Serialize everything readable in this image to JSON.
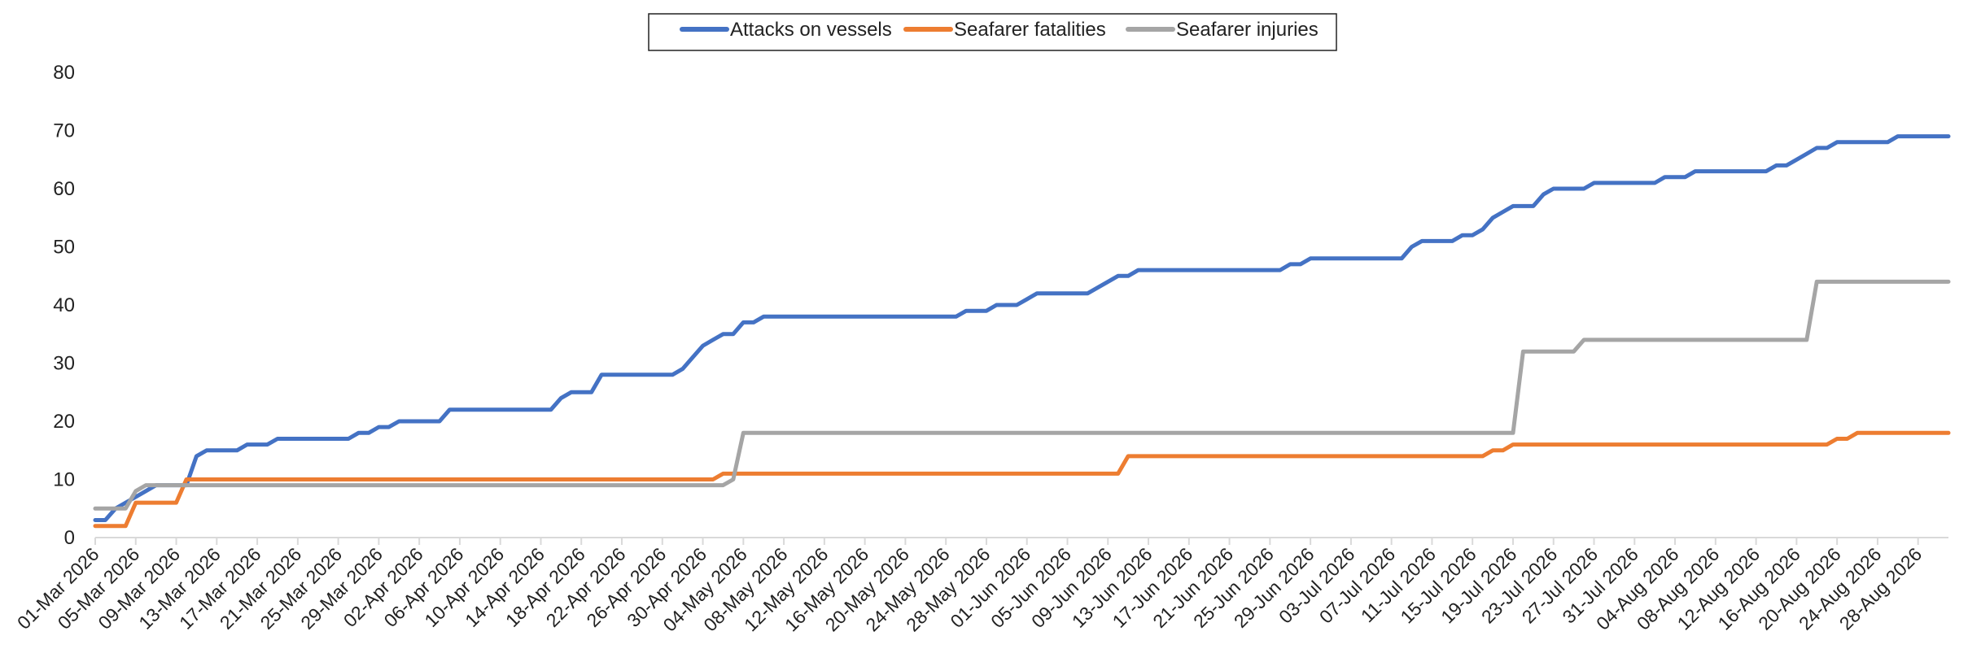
{
  "chart_data": {
    "type": "line",
    "title": "",
    "xlabel": "",
    "ylabel": "",
    "x_start": "2026-03-01",
    "x_end": "2026-08-31",
    "ylim": [
      0,
      80
    ],
    "y_ticks": [
      0,
      10,
      20,
      30,
      40,
      50,
      60,
      70,
      80
    ],
    "x_tick_labels": [
      "01-Mar 2026",
      "05-Mar 2026",
      "09-Mar 2026",
      "13-Mar 2026",
      "17-Mar 2026",
      "21-Mar 2026",
      "25-Mar 2026",
      "29-Mar 2026",
      "02-Apr 2026",
      "06-Apr 2026",
      "10-Apr 2026",
      "14-Apr 2026",
      "18-Apr 2026",
      "22-Apr 2026",
      "26-Apr 2026",
      "30-Apr 2026",
      "04-May 2026",
      "08-May 2026",
      "12-May 2026",
      "16-May 2026",
      "20-May 2026",
      "24-May 2026",
      "28-May 2026",
      "01-Jun 2026",
      "05-Jun 2026",
      "09-Jun 2026",
      "13-Jun 2026",
      "17-Jun 2026",
      "21-Jun 2026",
      "25-Jun 2026",
      "29-Jun 2026",
      "03-Jul 2026",
      "07-Jul 2026",
      "11-Jul 2026",
      "15-Jul 2026",
      "19-Jul 2026",
      "23-Jul 2026",
      "27-Jul 2026",
      "31-Jul 2026",
      "04-Aug 2026",
      "08-Aug 2026",
      "12-Aug 2026",
      "16-Aug 2026",
      "20-Aug 2026",
      "24-Aug 2026",
      "28-Aug 2026"
    ],
    "grid": false,
    "legend_position": "top-center",
    "series": [
      {
        "name": "Attacks on vessels",
        "color": "#4472C4",
        "points": [
          [
            "2026-03-01",
            3
          ],
          [
            "2026-03-02",
            3
          ],
          [
            "2026-03-03",
            5
          ],
          [
            "2026-03-04",
            6
          ],
          [
            "2026-03-05",
            7
          ],
          [
            "2026-03-06",
            8
          ],
          [
            "2026-03-07",
            9
          ],
          [
            "2026-03-08",
            9
          ],
          [
            "2026-03-09",
            9
          ],
          [
            "2026-03-10",
            9
          ],
          [
            "2026-03-11",
            14
          ],
          [
            "2026-03-12",
            15
          ],
          [
            "2026-03-15",
            15
          ],
          [
            "2026-03-16",
            16
          ],
          [
            "2026-03-18",
            16
          ],
          [
            "2026-03-19",
            17
          ],
          [
            "2026-03-26",
            17
          ],
          [
            "2026-03-27",
            18
          ],
          [
            "2026-03-28",
            18
          ],
          [
            "2026-03-29",
            19
          ],
          [
            "2026-03-30",
            19
          ],
          [
            "2026-03-31",
            20
          ],
          [
            "2026-04-04",
            20
          ],
          [
            "2026-04-05",
            22
          ],
          [
            "2026-04-15",
            22
          ],
          [
            "2026-04-16",
            24
          ],
          [
            "2026-04-17",
            25
          ],
          [
            "2026-04-19",
            25
          ],
          [
            "2026-04-20",
            28
          ],
          [
            "2026-04-27",
            28
          ],
          [
            "2026-04-28",
            29
          ],
          [
            "2026-04-29",
            31
          ],
          [
            "2026-04-30",
            33
          ],
          [
            "2026-05-01",
            34
          ],
          [
            "2026-05-02",
            35
          ],
          [
            "2026-05-03",
            35
          ],
          [
            "2026-05-04",
            37
          ],
          [
            "2026-05-05",
            37
          ],
          [
            "2026-05-06",
            38
          ],
          [
            "2026-05-25",
            38
          ],
          [
            "2026-05-26",
            39
          ],
          [
            "2026-05-28",
            39
          ],
          [
            "2026-05-29",
            40
          ],
          [
            "2026-05-31",
            40
          ],
          [
            "2026-06-01",
            41
          ],
          [
            "2026-06-02",
            42
          ],
          [
            "2026-06-07",
            42
          ],
          [
            "2026-06-08",
            43
          ],
          [
            "2026-06-09",
            44
          ],
          [
            "2026-06-10",
            45
          ],
          [
            "2026-06-11",
            45
          ],
          [
            "2026-06-12",
            46
          ],
          [
            "2026-06-26",
            46
          ],
          [
            "2026-06-27",
            47
          ],
          [
            "2026-06-28",
            47
          ],
          [
            "2026-06-29",
            48
          ],
          [
            "2026-07-08",
            48
          ],
          [
            "2026-07-09",
            50
          ],
          [
            "2026-07-10",
            51
          ],
          [
            "2026-07-13",
            51
          ],
          [
            "2026-07-14",
            52
          ],
          [
            "2026-07-15",
            52
          ],
          [
            "2026-07-16",
            53
          ],
          [
            "2026-07-17",
            55
          ],
          [
            "2026-07-18",
            56
          ],
          [
            "2026-07-19",
            57
          ],
          [
            "2026-07-21",
            57
          ],
          [
            "2026-07-22",
            59
          ],
          [
            "2026-07-23",
            60
          ],
          [
            "2026-07-26",
            60
          ],
          [
            "2026-07-27",
            61
          ],
          [
            "2026-08-02",
            61
          ],
          [
            "2026-08-03",
            62
          ],
          [
            "2026-08-05",
            62
          ],
          [
            "2026-08-06",
            63
          ],
          [
            "2026-08-13",
            63
          ],
          [
            "2026-08-14",
            64
          ],
          [
            "2026-08-15",
            64
          ],
          [
            "2026-08-16",
            65
          ],
          [
            "2026-08-17",
            66
          ],
          [
            "2026-08-18",
            67
          ],
          [
            "2026-08-19",
            67
          ],
          [
            "2026-08-20",
            68
          ],
          [
            "2026-08-25",
            68
          ],
          [
            "2026-08-26",
            69
          ],
          [
            "2026-08-31",
            69
          ]
        ]
      },
      {
        "name": "Seafarer fatalities",
        "color": "#ED7D31",
        "points": [
          [
            "2026-03-01",
            2
          ],
          [
            "2026-03-04",
            2
          ],
          [
            "2026-03-05",
            6
          ],
          [
            "2026-03-09",
            6
          ],
          [
            "2026-03-10",
            10
          ],
          [
            "2026-05-01",
            10
          ],
          [
            "2026-05-02",
            11
          ],
          [
            "2026-06-10",
            11
          ],
          [
            "2026-06-11",
            14
          ],
          [
            "2026-07-16",
            14
          ],
          [
            "2026-07-17",
            15
          ],
          [
            "2026-07-18",
            15
          ],
          [
            "2026-07-19",
            16
          ],
          [
            "2026-08-19",
            16
          ],
          [
            "2026-08-20",
            17
          ],
          [
            "2026-08-21",
            17
          ],
          [
            "2026-08-22",
            18
          ],
          [
            "2026-08-31",
            18
          ]
        ]
      },
      {
        "name": "Seafarer injuries",
        "color": "#A5A5A5",
        "points": [
          [
            "2026-03-01",
            5
          ],
          [
            "2026-03-04",
            5
          ],
          [
            "2026-03-05",
            8
          ],
          [
            "2026-03-06",
            9
          ],
          [
            "2026-05-02",
            9
          ],
          [
            "2026-05-03",
            10
          ],
          [
            "2026-05-04",
            18
          ],
          [
            "2026-07-19",
            18
          ],
          [
            "2026-07-20",
            32
          ],
          [
            "2026-07-25",
            32
          ],
          [
            "2026-07-26",
            34
          ],
          [
            "2026-08-17",
            34
          ],
          [
            "2026-08-18",
            44
          ],
          [
            "2026-08-31",
            44
          ]
        ]
      }
    ]
  }
}
